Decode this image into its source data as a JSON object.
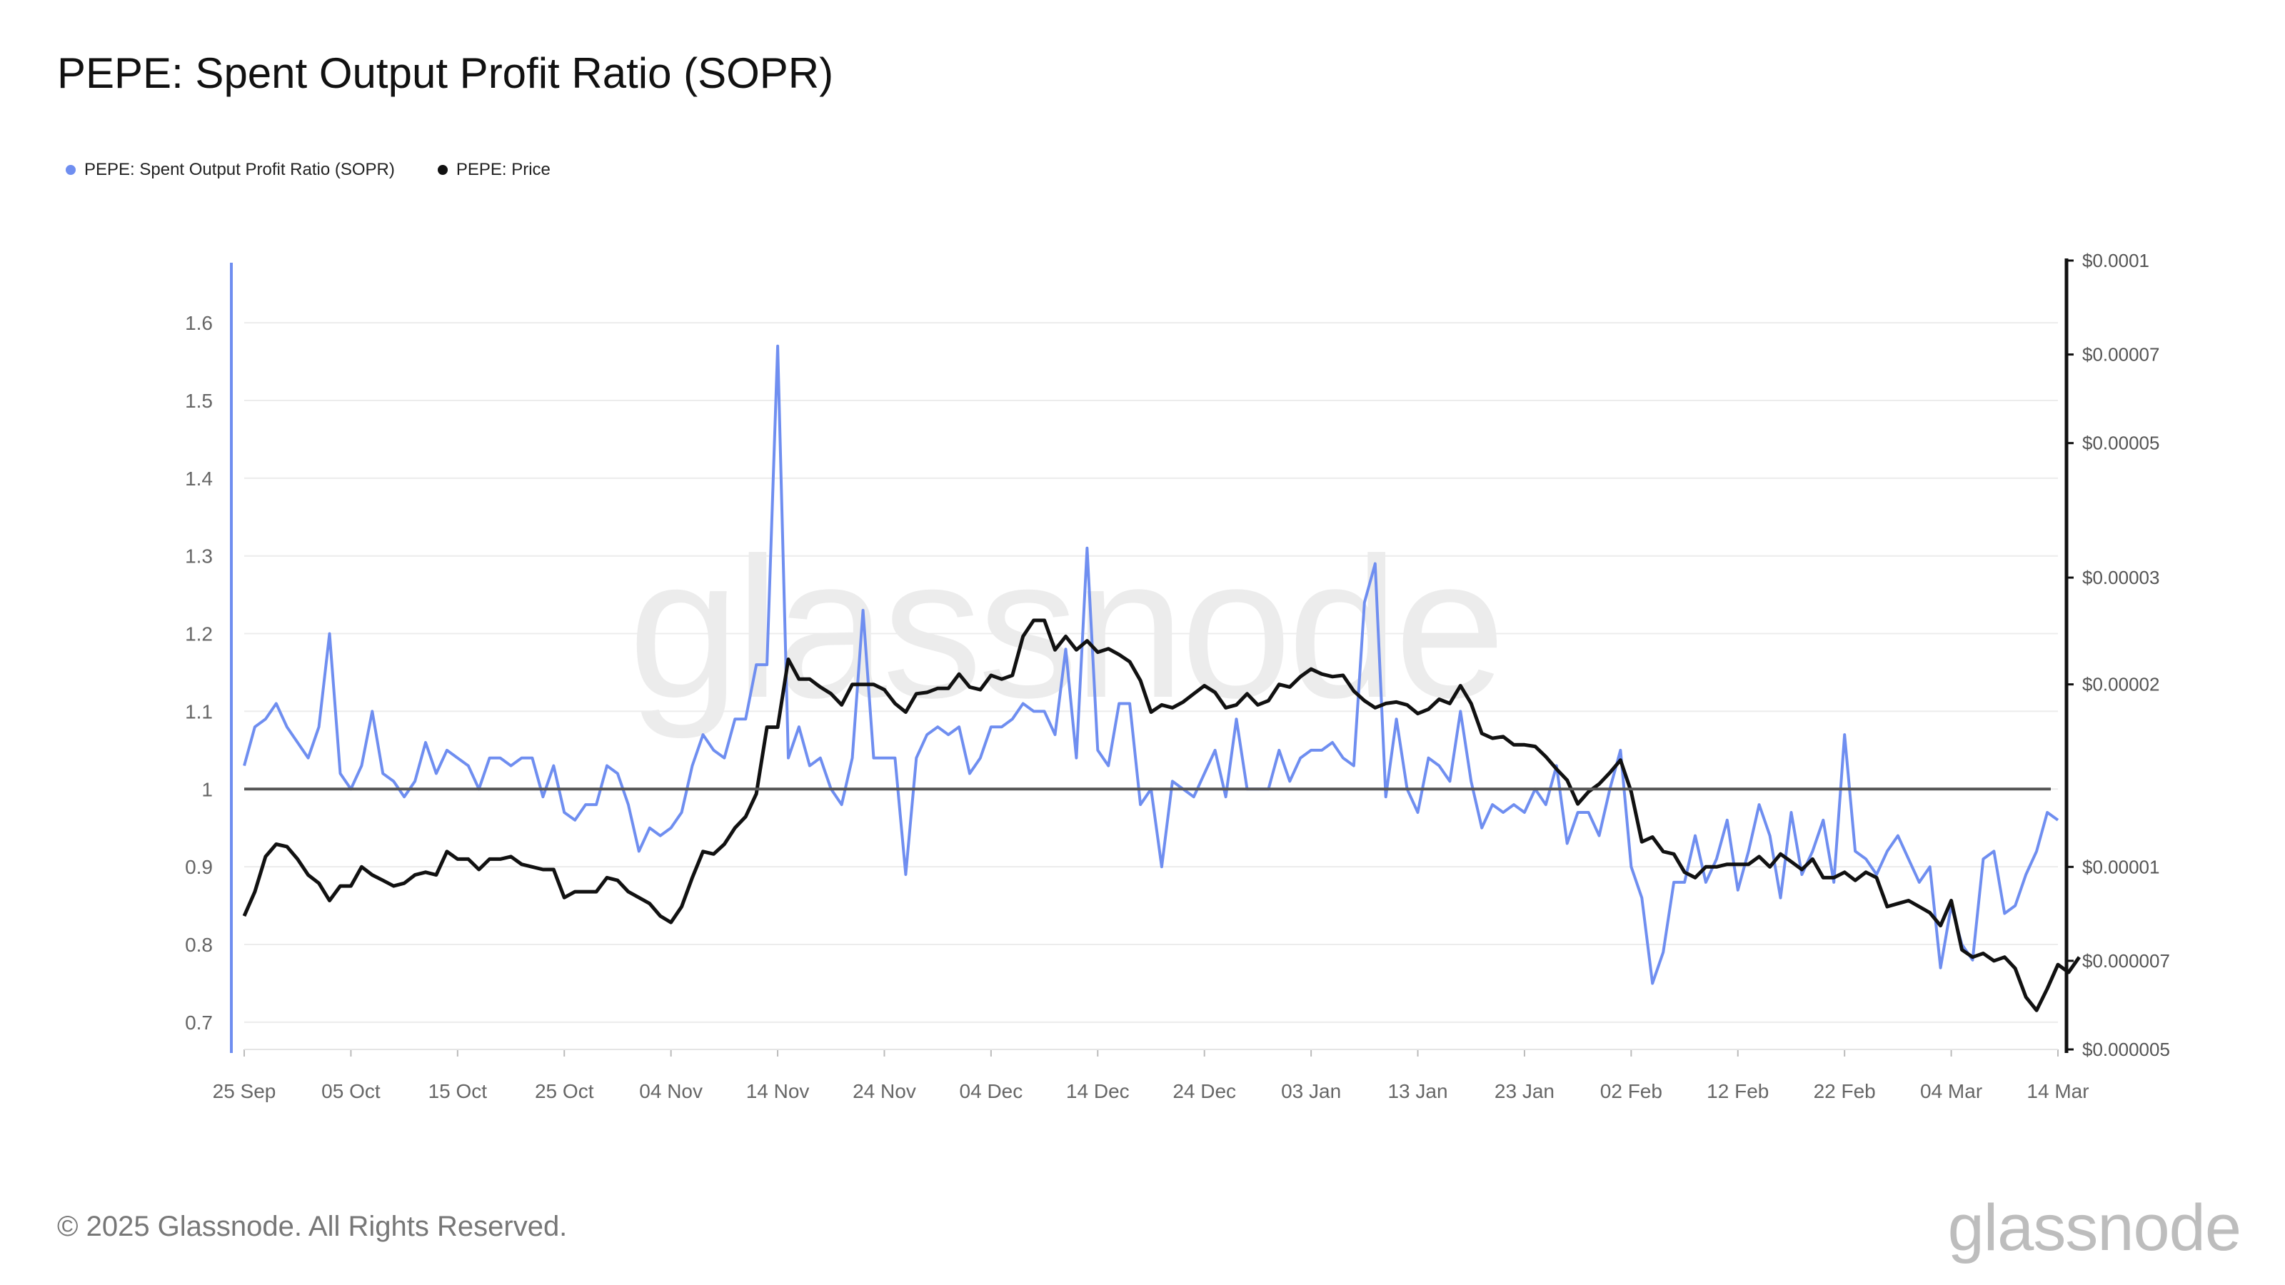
{
  "title": "PEPE: Spent Output Profit Ratio (SOPR)",
  "watermark": "glassnode",
  "footer": "© 2025 Glassnode. All Rights Reserved.",
  "brand": "glassnode",
  "legend": [
    {
      "label": "PEPE: Spent Output Profit Ratio (SOPR)",
      "color": "#6f8ef0"
    },
    {
      "label": "PEPE: Price",
      "color": "#111111"
    }
  ],
  "chart_data": {
    "type": "line",
    "title": "PEPE: Spent Output Profit Ratio (SOPR)",
    "xlabel": "",
    "ylabel": "",
    "x_ticks": [
      "25 Sep",
      "05 Oct",
      "15 Oct",
      "25 Oct",
      "04 Nov",
      "14 Nov",
      "24 Nov",
      "04 Dec",
      "14 Dec",
      "24 Dec",
      "03 Jan",
      "13 Jan",
      "23 Jan",
      "02 Feb",
      "12 Feb",
      "22 Feb",
      "04 Mar",
      "14 Mar"
    ],
    "start_date": "25 Sep",
    "y_left": {
      "ticks": [
        "0.7",
        "0.8",
        "0.9",
        "1",
        "1.1",
        "1.2",
        "1.3",
        "1.4",
        "1.5",
        "1.6"
      ],
      "range": [
        0.665,
        1.68
      ]
    },
    "y_right": {
      "ticks": [
        "$0.000005",
        "$0.000007",
        "$0.00001",
        "$0.00002",
        "$0.00003",
        "$0.00005",
        "$0.00007",
        "$0.0001"
      ],
      "scale": "log",
      "range": [
        5e-06,
        0.0001
      ]
    },
    "reference_line": {
      "value": 1,
      "axis": "left"
    },
    "series": [
      {
        "name": "PEPE: Spent Output Profit Ratio (SOPR)",
        "axis": "left",
        "color": "#6f8ef0",
        "values": [
          1.03,
          1.08,
          1.09,
          1.11,
          1.08,
          1.06,
          1.04,
          1.08,
          1.2,
          1.02,
          1.0,
          1.03,
          1.1,
          1.02,
          1.01,
          0.99,
          1.01,
          1.06,
          1.02,
          1.05,
          1.04,
          1.03,
          1.0,
          1.04,
          1.04,
          1.03,
          1.04,
          1.04,
          0.99,
          1.03,
          0.97,
          0.96,
          0.98,
          0.98,
          1.03,
          1.02,
          0.98,
          0.92,
          0.95,
          0.94,
          0.95,
          0.97,
          1.03,
          1.07,
          1.05,
          1.04,
          1.09,
          1.09,
          1.16,
          1.16,
          1.57,
          1.04,
          1.08,
          1.03,
          1.04,
          1.0,
          0.98,
          1.04,
          1.23,
          1.04,
          1.04,
          1.04,
          0.89,
          1.04,
          1.07,
          1.08,
          1.07,
          1.08,
          1.02,
          1.04,
          1.08,
          1.08,
          1.09,
          1.11,
          1.1,
          1.1,
          1.07,
          1.18,
          1.04,
          1.31,
          1.05,
          1.03,
          1.11,
          1.11,
          0.98,
          1.0,
          0.9,
          1.01,
          1.0,
          0.99,
          1.02,
          1.05,
          0.99,
          1.09,
          1.0,
          1.0,
          1.0,
          1.05,
          1.01,
          1.04,
          1.05,
          1.05,
          1.06,
          1.04,
          1.03,
          1.24,
          1.29,
          0.99,
          1.09,
          1.0,
          0.97,
          1.04,
          1.03,
          1.01,
          1.1,
          1.01,
          0.95,
          0.98,
          0.97,
          0.98,
          0.97,
          1.0,
          0.98,
          1.03,
          0.93,
          0.97,
          0.97,
          0.94,
          1.0,
          1.05,
          0.9,
          0.86,
          0.75,
          0.79,
          0.88,
          0.88,
          0.94,
          0.88,
          0.91,
          0.96,
          0.87,
          0.92,
          0.98,
          0.94,
          0.86,
          0.97,
          0.89,
          0.92,
          0.96,
          0.88,
          1.07,
          0.92,
          0.91,
          0.89,
          0.92,
          0.94,
          0.91,
          0.88,
          0.9,
          0.77,
          0.85,
          0.8,
          0.78,
          0.91,
          0.92,
          0.84,
          0.85,
          0.89,
          0.92,
          0.97,
          0.96
        ]
      },
      {
        "name": "PEPE: Price",
        "axis": "right",
        "color": "#111111",
        "values": [
          8.3e-06,
          9.1e-06,
          1.04e-05,
          1.09e-05,
          1.08e-05,
          1.03e-05,
          9.7e-06,
          9.4e-06,
          8.8e-06,
          9.3e-06,
          9.3e-06,
          1e-05,
          9.7e-06,
          9.5e-06,
          9.3e-06,
          9.4e-06,
          9.7e-06,
          9.8e-06,
          9.7e-06,
          1.06e-05,
          1.03e-05,
          1.03e-05,
          9.9e-06,
          1.03e-05,
          1.03e-05,
          1.04e-05,
          1.01e-05,
          1e-05,
          9.9e-06,
          9.9e-06,
          8.9e-06,
          9.1e-06,
          9.1e-06,
          9.1e-06,
          9.6e-06,
          9.5e-06,
          9.1e-06,
          8.9e-06,
          8.7e-06,
          8.3e-06,
          8.1e-06,
          8.6e-06,
          9.6e-06,
          1.06e-05,
          1.05e-05,
          1.09e-05,
          1.16e-05,
          1.21e-05,
          1.32e-05,
          1.7e-05,
          1.7e-05,
          2.2e-05,
          2.04e-05,
          2.04e-05,
          1.98e-05,
          1.93e-05,
          1.85e-05,
          2e-05,
          2e-05,
          2e-05,
          1.96e-05,
          1.86e-05,
          1.8e-05,
          1.93e-05,
          1.94e-05,
          1.97e-05,
          1.97e-05,
          2.08e-05,
          1.98e-05,
          1.96e-05,
          2.07e-05,
          2.04e-05,
          2.07e-05,
          2.4e-05,
          2.55e-05,
          2.55e-05,
          2.28e-05,
          2.4e-05,
          2.28e-05,
          2.36e-05,
          2.26e-05,
          2.29e-05,
          2.24e-05,
          2.18e-05,
          2.03e-05,
          1.8e-05,
          1.85e-05,
          1.83e-05,
          1.87e-05,
          1.93e-05,
          1.99e-05,
          1.94e-05,
          1.83e-05,
          1.85e-05,
          1.93e-05,
          1.85e-05,
          1.88e-05,
          2e-05,
          1.98e-05,
          2.06e-05,
          2.12e-05,
          2.08e-05,
          2.06e-05,
          2.07e-05,
          1.95e-05,
          1.88e-05,
          1.83e-05,
          1.86e-05,
          1.87e-05,
          1.85e-05,
          1.79e-05,
          1.82e-05,
          1.89e-05,
          1.86e-05,
          1.99e-05,
          1.86e-05,
          1.66e-05,
          1.63e-05,
          1.64e-05,
          1.59e-05,
          1.59e-05,
          1.58e-05,
          1.52e-05,
          1.45e-05,
          1.39e-05,
          1.27e-05,
          1.33e-05,
          1.37e-05,
          1.43e-05,
          1.5e-05,
          1.33e-05,
          1.1e-05,
          1.12e-05,
          1.06e-05,
          1.05e-05,
          9.8e-06,
          9.6e-06,
          1e-05,
          1e-05,
          1.01e-05,
          1.01e-05,
          1.01e-05,
          1.04e-05,
          1e-05,
          1.05e-05,
          1.02e-05,
          9.9e-06,
          1.03e-05,
          9.6e-06,
          9.6e-06,
          9.8e-06,
          9.5e-06,
          9.8e-06,
          9.6e-06,
          8.6e-06,
          8.7e-06,
          8.8e-06,
          8.6e-06,
          8.4e-06,
          8e-06,
          8.8e-06,
          7.3e-06,
          7.1e-06,
          7.2e-06,
          7e-06,
          7.1e-06,
          6.8e-06,
          6.1e-06,
          5.8e-06,
          6.3e-06,
          6.9e-06,
          6.7e-06,
          7.1e-06
        ]
      }
    ]
  }
}
